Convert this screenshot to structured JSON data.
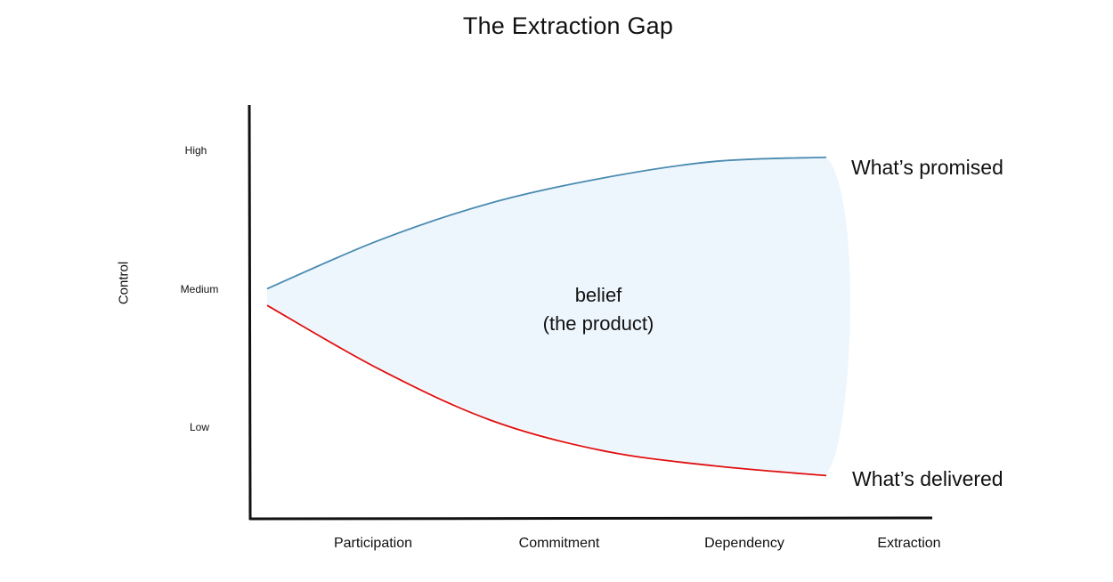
{
  "chart_data": {
    "type": "area",
    "title": "The Extraction Gap",
    "xlabel": "",
    "ylabel": "Control",
    "categories": [
      "Participation",
      "Commitment",
      "Dependency",
      "Extraction"
    ],
    "y_ticks": [
      "High",
      "Medium",
      "Low"
    ],
    "ylim": [
      "Low",
      "High"
    ],
    "grid": false,
    "series": [
      {
        "name": "What’s promised",
        "color": "#4a8bb0",
        "points": [
          [
            0,
            1.0
          ],
          [
            0.5,
            1.35
          ],
          [
            1,
            1.62
          ],
          [
            1.5,
            1.8
          ],
          [
            2,
            1.92
          ],
          [
            2.5,
            1.95
          ]
        ],
        "y_units": "0 = Low, 1 = Medium, 2 = High"
      },
      {
        "name": "What’s delivered",
        "color": "#e01010",
        "points": [
          [
            0,
            0.88
          ],
          [
            0.5,
            0.42
          ],
          [
            1,
            0.05
          ],
          [
            1.5,
            -0.17
          ],
          [
            2,
            -0.28
          ],
          [
            2.5,
            -0.35
          ]
        ],
        "y_units": "0 = Low, 1 = Medium, 2 = High"
      }
    ],
    "fill_between": {
      "label_line1": "belief",
      "label_line2": "(the product)",
      "color": "#eef6fd"
    }
  }
}
